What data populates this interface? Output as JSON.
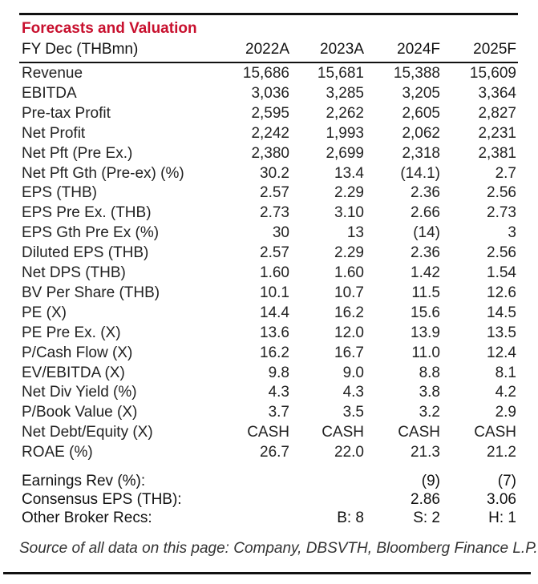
{
  "title": "Forecasts and Valuation",
  "header": {
    "label": "FY Dec (THBmn)",
    "years": [
      "2022A",
      "2023A",
      "2024F",
      "2025F"
    ]
  },
  "rows": [
    {
      "label": "Revenue",
      "values": [
        "15,686",
        "15,681",
        "15,388",
        "15,609"
      ]
    },
    {
      "label": "EBITDA",
      "values": [
        "3,036",
        "3,285",
        "3,205",
        "3,364"
      ]
    },
    {
      "label": "Pre-tax Profit",
      "values": [
        "2,595",
        "2,262",
        "2,605",
        "2,827"
      ]
    },
    {
      "label": "Net Profit",
      "values": [
        "2,242",
        "1,993",
        "2,062",
        "2,231"
      ]
    },
    {
      "label": "Net Pft (Pre Ex.)",
      "values": [
        "2,380",
        "2,699",
        "2,318",
        "2,381"
      ]
    },
    {
      "label": "Net Pft Gth (Pre-ex) (%)",
      "values": [
        "30.2",
        "13.4",
        "(14.1)",
        "2.7"
      ]
    },
    {
      "label": "EPS (THB)",
      "values": [
        "2.57",
        "2.29",
        "2.36",
        "2.56"
      ]
    },
    {
      "label": "EPS Pre Ex. (THB)",
      "values": [
        "2.73",
        "3.10",
        "2.66",
        "2.73"
      ]
    },
    {
      "label": "EPS Gth Pre Ex (%)",
      "values": [
        "30",
        "13",
        "(14)",
        "3"
      ]
    },
    {
      "label": "Diluted EPS (THB)",
      "values": [
        "2.57",
        "2.29",
        "2.36",
        "2.56"
      ]
    },
    {
      "label": "Net DPS (THB)",
      "values": [
        "1.60",
        "1.60",
        "1.42",
        "1.54"
      ]
    },
    {
      "label": "BV Per Share (THB)",
      "values": [
        "10.1",
        "10.7",
        "11.5",
        "12.6"
      ]
    },
    {
      "label": "PE (X)",
      "values": [
        "14.4",
        "16.2",
        "15.6",
        "14.5"
      ]
    },
    {
      "label": "PE Pre Ex. (X)",
      "values": [
        "13.6",
        "12.0",
        "13.9",
        "13.5"
      ]
    },
    {
      "label": "P/Cash Flow (X)",
      "values": [
        "16.2",
        "16.7",
        "11.0",
        "12.4"
      ]
    },
    {
      "label": "EV/EBITDA (X)",
      "values": [
        "9.8",
        "9.0",
        "8.8",
        "8.1"
      ]
    },
    {
      "label": "Net Div Yield (%)",
      "values": [
        "4.3",
        "4.3",
        "3.8",
        "4.2"
      ]
    },
    {
      "label": "P/Book Value (X)",
      "values": [
        "3.7",
        "3.5",
        "3.2",
        "2.9"
      ]
    },
    {
      "label": "Net Debt/Equity (X)",
      "values": [
        "CASH",
        "CASH",
        "CASH",
        "CASH"
      ]
    },
    {
      "label": "ROAE (%)",
      "values": [
        "26.7",
        "22.0",
        "21.3",
        "21.2"
      ]
    }
  ],
  "footer_rows": [
    {
      "label": "Earnings Rev (%):",
      "values": [
        "",
        "",
        "(9)",
        "(7)"
      ]
    },
    {
      "label": "Consensus EPS (THB):",
      "values": [
        "",
        "",
        "2.86",
        "3.06"
      ]
    },
    {
      "label": "Other Broker Recs:",
      "values": [
        "",
        "B: 8",
        "S: 2",
        "H: 1"
      ]
    }
  ],
  "source": "Source of all data on this page: Company, DBSVTH, Bloomberg Finance L.P."
}
